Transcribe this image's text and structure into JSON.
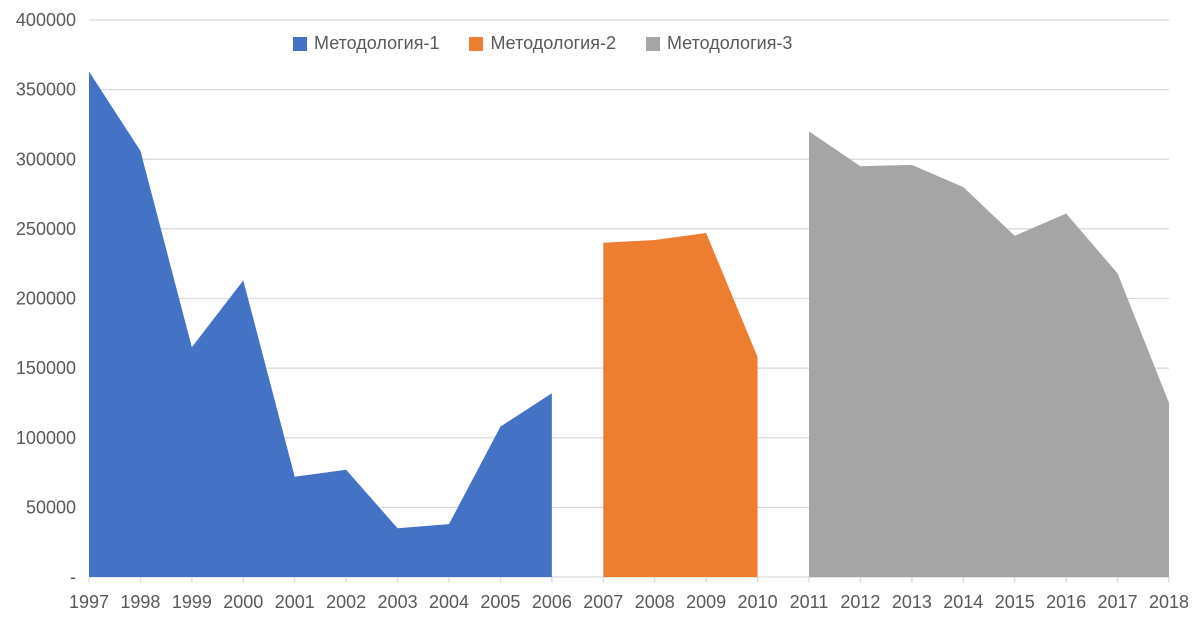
{
  "chart_data": {
    "type": "area",
    "title": "",
    "x_categories": [
      "1997",
      "1998",
      "1999",
      "2000",
      "2001",
      "2002",
      "2003",
      "2004",
      "2005",
      "2006",
      "2007",
      "2008",
      "2009",
      "2010",
      "2011",
      "2012",
      "2013",
      "2014",
      "2015",
      "2016",
      "2017",
      "2018"
    ],
    "y_axis": {
      "min": 0,
      "max": 400000,
      "step": 50000,
      "tick_labels": [
        "-",
        "50000",
        "100000",
        "150000",
        "200000",
        "250000",
        "300000",
        "350000",
        "400000"
      ]
    },
    "grid": true,
    "legend_position": "top",
    "colors": {
      "gridline": "#D9D9D9",
      "axis_line": "#D9D9D9",
      "axis_text": "#595959",
      "background": "#FFFFFF"
    },
    "series": [
      {
        "name": "Методология-1",
        "color": "#4472C4",
        "x": [
          "1997",
          "1998",
          "1999",
          "2000",
          "2001",
          "2002",
          "2003",
          "2004",
          "2005",
          "2006"
        ],
        "values": [
          363000,
          306000,
          165000,
          213000,
          72000,
          77000,
          35000,
          38000,
          108000,
          132000
        ]
      },
      {
        "name": "Методология-2",
        "color": "#ED7D31",
        "x": [
          "2007",
          "2008",
          "2009",
          "2010"
        ],
        "values": [
          240000,
          242000,
          247000,
          158000
        ]
      },
      {
        "name": "Методология-3",
        "color": "#A5A5A5",
        "x": [
          "2011",
          "2012",
          "2013",
          "2014",
          "2015",
          "2016",
          "2017",
          "2018"
        ],
        "values": [
          320000,
          295000,
          296000,
          280000,
          245000,
          261000,
          218000,
          125000
        ]
      }
    ]
  }
}
